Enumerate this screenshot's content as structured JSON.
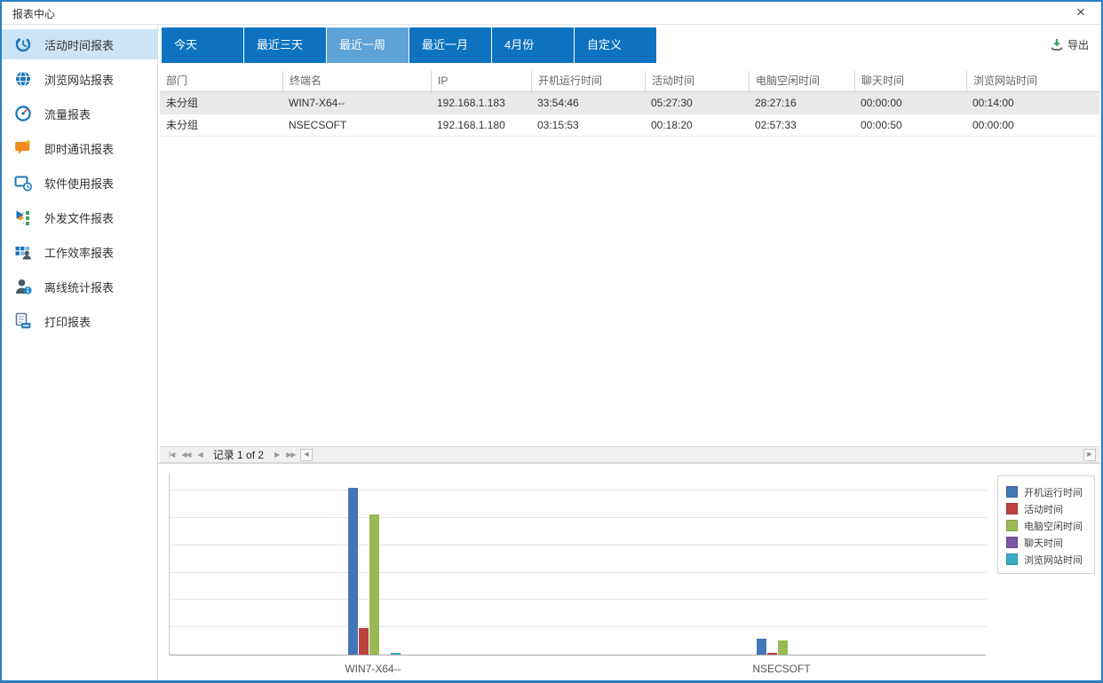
{
  "window": {
    "title": "报表中心",
    "close_icon": "close-icon"
  },
  "sidebar": {
    "items": [
      {
        "id": "activity-time-report",
        "label": "活动时间报表",
        "icon": "history-clock-icon",
        "selected": true
      },
      {
        "id": "browse-website-report",
        "label": "浏览网站报表",
        "icon": "globe-icon",
        "selected": false
      },
      {
        "id": "traffic-report",
        "label": "流量报表",
        "icon": "speedometer-icon",
        "selected": false
      },
      {
        "id": "im-report",
        "label": "即时通讯报表",
        "icon": "chat-bubble-icon",
        "selected": false
      },
      {
        "id": "software-usage-report",
        "label": "软件使用报表",
        "icon": "app-window-clock-icon",
        "selected": false
      },
      {
        "id": "outgoing-files-report",
        "label": "外发文件报表",
        "icon": "outgoing-files-icon",
        "selected": false
      },
      {
        "id": "work-efficiency-report",
        "label": "工作效率报表",
        "icon": "grid-person-icon",
        "selected": false
      },
      {
        "id": "offline-stats-report",
        "label": "离线统计报表",
        "icon": "person-info-icon",
        "selected": false
      },
      {
        "id": "print-report",
        "label": "打印报表",
        "icon": "printer-icon",
        "selected": false
      }
    ]
  },
  "tabs": [
    {
      "label": "今天",
      "selected": false
    },
    {
      "label": "最近三天",
      "selected": false
    },
    {
      "label": "最近一周",
      "selected": true
    },
    {
      "label": "最近一月",
      "selected": false
    },
    {
      "label": "4月份",
      "selected": false
    },
    {
      "label": "自定义",
      "selected": false
    }
  ],
  "toolbar": {
    "export_label": "导出"
  },
  "table": {
    "columns": [
      "部门",
      "终端名",
      "IP",
      "开机运行时间",
      "活动时间",
      "电脑空闲时间",
      "聊天时间",
      "浏览网站时间"
    ],
    "rows": [
      [
        "未分组",
        "WIN7-X64--",
        "192.168.1.183",
        "33:54:46",
        "05:27:30",
        "28:27:16",
        "00:00:00",
        "00:14:00"
      ],
      [
        "未分组",
        "NSECSOFT",
        "192.168.1.180",
        "03:15:53",
        "00:18:20",
        "02:57:33",
        "00:00:50",
        "00:00:00"
      ]
    ]
  },
  "pager": {
    "record_text": "记录 1 of 2"
  },
  "colors": {
    "window_border": "#2b7fc4",
    "tab": "#0d73c0",
    "tab_selected": "#5ea2d6",
    "sidebar_selected_bg": "#cde4f6",
    "striped_row_bg": "#e9e9e9"
  },
  "chart_data": {
    "type": "bar",
    "categories": [
      "WIN7-X64--",
      "NSECSOFT"
    ],
    "series": [
      {
        "name": "开机运行时间",
        "color": "#4276b4",
        "values_hours": [
          33.91,
          3.26
        ],
        "values_hms": [
          "33:54:46",
          "03:15:53"
        ]
      },
      {
        "name": "活动时间",
        "color": "#bf4040",
        "values_hours": [
          5.46,
          0.31
        ],
        "values_hms": [
          "05:27:30",
          "00:18:20"
        ]
      },
      {
        "name": "电脑空闲时间",
        "color": "#99b954",
        "values_hours": [
          28.45,
          2.96
        ],
        "values_hms": [
          "28:27:16",
          "02:57:33"
        ]
      },
      {
        "name": "聊天时间",
        "color": "#7a56a5",
        "values_hours": [
          0,
          0.01
        ],
        "values_hms": [
          "00:00:00",
          "00:00:50"
        ]
      },
      {
        "name": "浏览网站时间",
        "color": "#3aa9c4",
        "values_hours": [
          0.23,
          0
        ],
        "values_hms": [
          "00:14:00",
          "00:00:00"
        ]
      }
    ],
    "title": "",
    "xlabel": "",
    "ylabel": "",
    "ylim": [
      0,
      37
    ],
    "grid": true,
    "legend_position": "top-right"
  }
}
